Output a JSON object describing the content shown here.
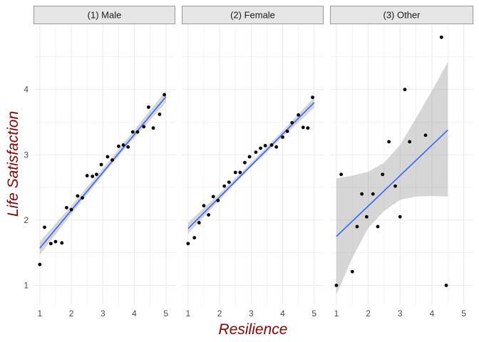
{
  "chart_data": {
    "type": "scatter",
    "facet_layout": "1 row x 3 columns",
    "xlabel": "Resilience",
    "ylabel": "Life Satisfaction",
    "xlim": [
      0.8,
      5.3
    ],
    "ylim": [
      0.7,
      5.0
    ],
    "x_ticks": [
      1,
      2,
      3,
      4,
      5
    ],
    "y_ticks": [
      1,
      2,
      3,
      4
    ],
    "grid": true,
    "point_color": "#000000",
    "line_color": "#3366ff",
    "band_color": "#999999",
    "panel_background": "#ffffff",
    "grid_color": "#ebebeb",
    "strip_fill": "#e6e6e6",
    "strip_border": "#999999",
    "title_color": "#8b0000",
    "panels": [
      {
        "label": "(1) Male",
        "points": [
          [
            1.0,
            1.32
          ],
          [
            1.15,
            1.89
          ],
          [
            1.35,
            1.64
          ],
          [
            1.5,
            1.67
          ],
          [
            1.7,
            1.65
          ],
          [
            1.85,
            2.19
          ],
          [
            2.0,
            2.16
          ],
          [
            2.2,
            2.37
          ],
          [
            2.35,
            2.34
          ],
          [
            2.5,
            2.68
          ],
          [
            2.67,
            2.67
          ],
          [
            2.8,
            2.7
          ],
          [
            2.95,
            2.85
          ],
          [
            3.15,
            2.97
          ],
          [
            3.3,
            2.92
          ],
          [
            3.5,
            3.13
          ],
          [
            3.65,
            3.15
          ],
          [
            3.8,
            3.12
          ],
          [
            3.95,
            3.35
          ],
          [
            4.1,
            3.35
          ],
          [
            4.3,
            3.43
          ],
          [
            4.45,
            3.73
          ],
          [
            4.6,
            3.41
          ],
          [
            4.8,
            3.62
          ],
          [
            4.95,
            3.92
          ]
        ],
        "fit": [
          [
            1.0,
            1.57
          ],
          [
            5.0,
            3.89
          ]
        ],
        "band": [
          [
            1.0,
            1.47,
            1.67
          ],
          [
            2.0,
            2.09,
            2.22
          ],
          [
            3.0,
            2.69,
            2.79
          ],
          [
            4.0,
            3.26,
            3.38
          ],
          [
            5.0,
            3.8,
            3.98
          ]
        ]
      },
      {
        "label": "(2) Female",
        "points": [
          [
            1.0,
            1.64
          ],
          [
            1.2,
            1.73
          ],
          [
            1.35,
            1.96
          ],
          [
            1.5,
            2.22
          ],
          [
            1.65,
            2.08
          ],
          [
            1.8,
            2.36
          ],
          [
            1.95,
            2.3
          ],
          [
            2.15,
            2.52
          ],
          [
            2.3,
            2.58
          ],
          [
            2.5,
            2.73
          ],
          [
            2.65,
            2.73
          ],
          [
            2.8,
            2.88
          ],
          [
            2.95,
            2.97
          ],
          [
            3.15,
            3.04
          ],
          [
            3.3,
            3.1
          ],
          [
            3.45,
            3.14
          ],
          [
            3.65,
            3.15
          ],
          [
            3.8,
            3.12
          ],
          [
            4.0,
            3.27
          ],
          [
            4.15,
            3.36
          ],
          [
            4.3,
            3.49
          ],
          [
            4.5,
            3.61
          ],
          [
            4.65,
            3.42
          ],
          [
            4.8,
            3.41
          ],
          [
            4.95,
            3.88
          ]
        ],
        "fit": [
          [
            1.0,
            1.87
          ],
          [
            5.0,
            3.8
          ]
        ],
        "band": [
          [
            1.0,
            1.79,
            1.96
          ],
          [
            2.0,
            2.31,
            2.41
          ],
          [
            3.0,
            2.81,
            2.88
          ],
          [
            4.0,
            3.27,
            3.37
          ],
          [
            5.0,
            3.72,
            3.88
          ]
        ]
      },
      {
        "label": "(3) Other",
        "points": [
          [
            1.0,
            1.0
          ],
          [
            1.15,
            2.7
          ],
          [
            1.5,
            1.21
          ],
          [
            1.65,
            1.9
          ],
          [
            1.8,
            2.4
          ],
          [
            1.95,
            2.05
          ],
          [
            2.15,
            2.4
          ],
          [
            2.3,
            1.9
          ],
          [
            2.45,
            2.7
          ],
          [
            2.65,
            3.2
          ],
          [
            2.85,
            2.52
          ],
          [
            3.0,
            2.05
          ],
          [
            3.15,
            4.0
          ],
          [
            3.3,
            3.2
          ],
          [
            3.8,
            3.3
          ],
          [
            4.3,
            4.8
          ],
          [
            4.45,
            1.0
          ]
        ],
        "fit": [
          [
            1.0,
            1.75
          ],
          [
            4.5,
            3.38
          ]
        ],
        "band": [
          [
            1.0,
            0.86,
            2.64
          ],
          [
            1.5,
            1.42,
            2.68
          ],
          [
            2.0,
            1.88,
            2.74
          ],
          [
            2.5,
            2.14,
            2.88
          ],
          [
            3.0,
            2.31,
            3.15
          ],
          [
            3.5,
            2.36,
            3.56
          ],
          [
            4.0,
            2.37,
            3.98
          ],
          [
            4.5,
            2.36,
            4.42
          ]
        ]
      }
    ]
  }
}
